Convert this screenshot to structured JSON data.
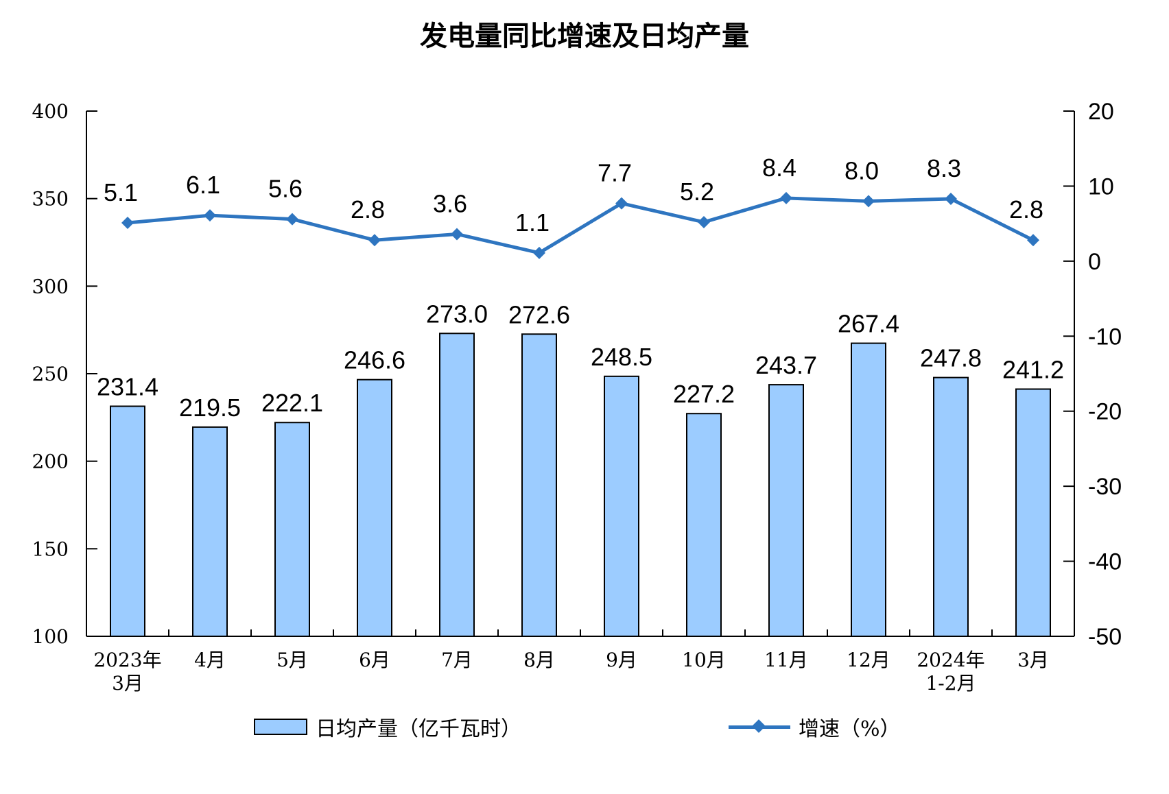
{
  "chart_data": {
    "type": "bar+line",
    "title": "发电量同比增速及日均产量",
    "categories": [
      [
        "2023年",
        "3月"
      ],
      [
        "4月"
      ],
      [
        "5月"
      ],
      [
        "6月"
      ],
      [
        "7月"
      ],
      [
        "8月"
      ],
      [
        "9月"
      ],
      [
        "10月"
      ],
      [
        "11月"
      ],
      [
        "12月"
      ],
      [
        "2024年",
        "1-2月"
      ],
      [
        "3月"
      ]
    ],
    "series": [
      {
        "name": "日均产量（亿千瓦时）",
        "type": "bar",
        "axis": "left",
        "color": "#9cccff",
        "values": [
          231.4,
          219.5,
          222.1,
          246.6,
          273.0,
          272.6,
          248.5,
          227.2,
          243.7,
          267.4,
          247.8,
          241.2
        ],
        "labels": [
          "231.4",
          "219.5",
          "222.1",
          "246.6",
          "273.0",
          "272.6",
          "248.5",
          "227.2",
          "243.7",
          "267.4",
          "247.8",
          "241.2"
        ]
      },
      {
        "name": "增速（%）",
        "type": "line",
        "axis": "right",
        "color": "#2e75c0",
        "marker": "diamond",
        "values": [
          5.1,
          6.1,
          5.6,
          2.8,
          3.6,
          1.1,
          7.7,
          5.2,
          8.4,
          8.0,
          8.3,
          2.8
        ],
        "labels": [
          "5.1",
          "6.1",
          "5.6",
          "2.8",
          "3.6",
          "1.1",
          "7.7",
          "5.2",
          "8.4",
          "8.0",
          "8.3",
          "2.8"
        ]
      }
    ],
    "y_left": {
      "range": [
        100,
        400
      ],
      "ticks": [
        "100",
        "150",
        "200",
        "250",
        "300",
        "350",
        "400"
      ]
    },
    "y_right": {
      "range": [
        -50,
        20
      ],
      "ticks": [
        "-50",
        "-40",
        "-30",
        "-20",
        "-10",
        "0",
        "10",
        "20"
      ]
    },
    "grid": false,
    "legend_position": "bottom"
  }
}
